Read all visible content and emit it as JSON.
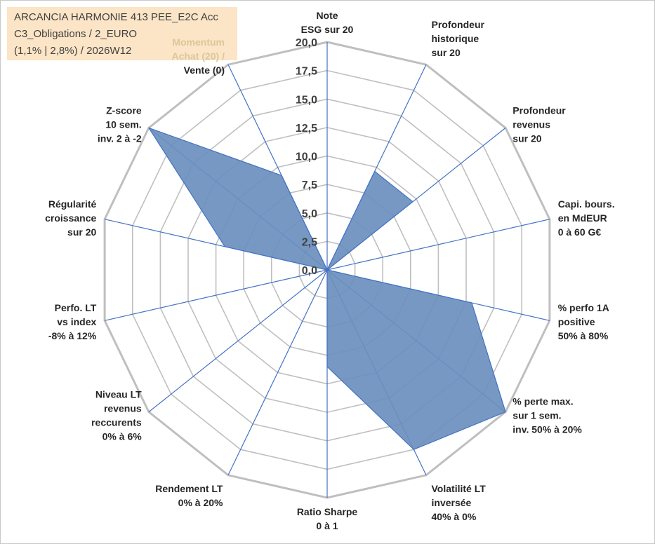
{
  "info": {
    "line1": "ARCANCIA HARMONIE 413 PEE_E2C Acc",
    "line2": "C3_Obligations / 2_EURO",
    "line3": "(1,1% | 2,8%) / 2026W12"
  },
  "colors": {
    "fill": "#6a8fbd",
    "outline": "#4472c4",
    "spoke": "#4472c4",
    "grid": "#bfbfbf",
    "info_bg": "#fbe5c6"
  },
  "chart_data": {
    "type": "radar",
    "title": "",
    "rmin": 0,
    "rmax": 20,
    "tick_labels": [
      "0,0",
      "2,5",
      "5,0",
      "7,5",
      "10,0",
      "12,5",
      "15,0",
      "17,5",
      "20,0"
    ],
    "axes": [
      {
        "lines": [
          "Note",
          "ESG sur 20"
        ]
      },
      {
        "lines": [
          "Profondeur",
          "historique",
          "sur 20"
        ]
      },
      {
        "lines": [
          "Profondeur",
          "revenus",
          "sur 20"
        ]
      },
      {
        "lines": [
          "Capi. bours.",
          "en MdEUR",
          "0 à 60 G€"
        ]
      },
      {
        "lines": [
          "% perfo 1A",
          "positive",
          "50% à 80%"
        ]
      },
      {
        "lines": [
          "% perte max.",
          "sur 1 sem.",
          "inv. 50% à 20%"
        ]
      },
      {
        "lines": [
          "Volatilité LT",
          "inversée",
          "40% à 0%"
        ]
      },
      {
        "lines": [
          "Ratio Sharpe",
          "0 à 1"
        ]
      },
      {
        "lines": [
          "Rendement LT",
          "0% à 20%"
        ]
      },
      {
        "lines": [
          "Niveau LT",
          "revenus",
          "reccurents",
          "0% à 6%"
        ]
      },
      {
        "lines": [
          "Perfo. LT",
          "vs index",
          "-8% à 12%"
        ]
      },
      {
        "lines": [
          "Régularité",
          "croissance",
          "sur 20"
        ]
      },
      {
        "lines": [
          "Z-score",
          "10 sem.",
          "inv. 2 à -2"
        ]
      },
      {
        "lines": [
          "Momentum",
          "Achat (20) /",
          "Vente (0)"
        ]
      }
    ],
    "series": [
      {
        "name": "ARCANCIA HARMONIE 413 PEE_E2C Acc",
        "values": [
          0,
          9.6,
          9.6,
          0,
          13.0,
          20.0,
          17.5,
          8.5,
          0,
          0,
          0,
          9.2,
          20.0,
          9.2
        ]
      }
    ]
  }
}
